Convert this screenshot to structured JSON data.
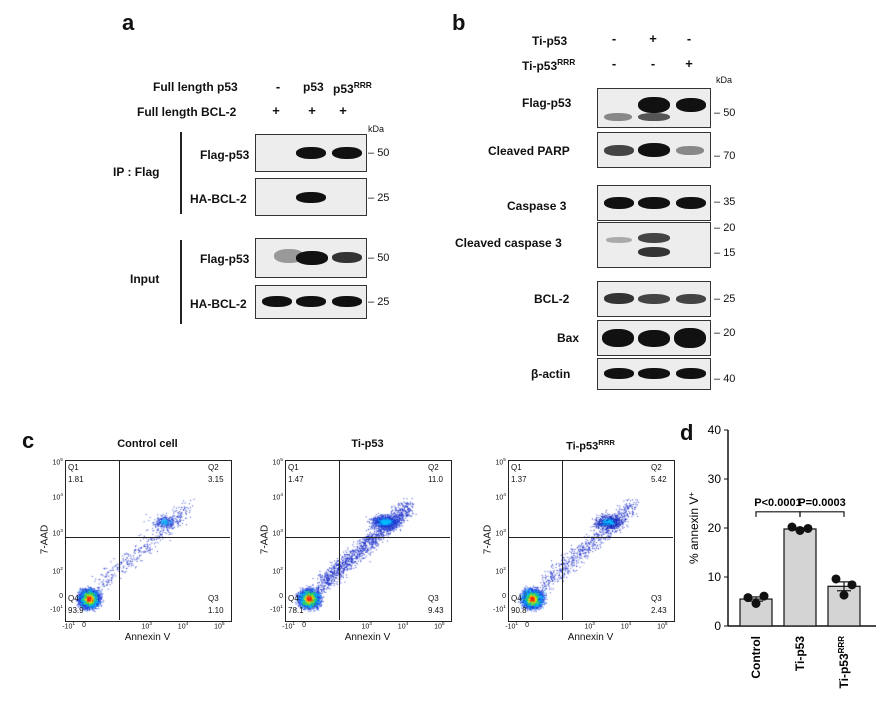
{
  "panels": {
    "a": "a",
    "b": "b",
    "c": "c",
    "d": "d"
  },
  "panel_a": {
    "row_full_p53": "Full length p53",
    "row_full_bcl2": "Full length BCL-2",
    "col_signs_p53": [
      "-",
      "p53",
      "p53"
    ],
    "p53rrr_sup": "RRR",
    "col_signs_bcl2": [
      "+",
      "+",
      "+"
    ],
    "kda": "kDa",
    "group_ip": "IP : Flag",
    "group_input": "Input",
    "blots": [
      {
        "label": "Flag-p53",
        "marker": "50"
      },
      {
        "label": "HA-BCL-2",
        "marker": "25"
      },
      {
        "label": "Flag-p53",
        "marker": "50"
      },
      {
        "label": "HA-BCL-2",
        "marker": "25"
      }
    ]
  },
  "panel_b": {
    "row_ti": "Ti-p53",
    "row_ti_rrr": "Ti-p53",
    "rrr_sup": "RRR",
    "signs_ti": [
      "-",
      "+",
      "-"
    ],
    "signs_ti_rrr": [
      "-",
      "-",
      "+"
    ],
    "kda": "kDa",
    "blots": [
      {
        "label": "Flag-p53",
        "markers": [
          "50"
        ]
      },
      {
        "label": "Cleaved PARP",
        "markers": [
          "70"
        ]
      },
      {
        "label": "Caspase 3",
        "markers": [
          "35"
        ]
      },
      {
        "label": "Cleaved caspase 3",
        "markers": [
          "20",
          "15"
        ]
      },
      {
        "label": "BCL-2",
        "markers": [
          "25"
        ]
      },
      {
        "label": "Bax",
        "markers": [
          "20"
        ]
      },
      {
        "label": "β-actin",
        "markers": [
          "40"
        ]
      }
    ]
  },
  "panel_c": {
    "xlabel": "Annexin V",
    "ylabel": "7-AAD",
    "quadrant_names": [
      "Q1",
      "Q2",
      "Q3",
      "Q4"
    ],
    "x_ticks": [
      "-10",
      "0",
      "10",
      "10",
      "10"
    ],
    "x_tick_exps": [
      "1",
      "",
      "3",
      "4",
      "5"
    ],
    "y_ticks": [
      "10",
      "10",
      "10",
      "10",
      "0",
      "-10"
    ],
    "y_tick_exps": [
      "5",
      "4",
      "3",
      "2",
      "",
      "1"
    ],
    "plots": [
      {
        "title": "Control cell",
        "title_sup": "",
        "q1": "1.81",
        "q2": "3.15",
        "q3": "1.10",
        "q4": "93.9"
      },
      {
        "title": "Ti-p53",
        "title_sup": "",
        "q1": "1.47",
        "q2": "11.0",
        "q3": "9.43",
        "q4": "78.1"
      },
      {
        "title": "Ti-p53",
        "title_sup": "RRR",
        "q1": "1.37",
        "q2": "5.42",
        "q3": "2.43",
        "q4": "90.8"
      }
    ]
  },
  "chart_data": {
    "type": "bar",
    "categories": [
      "Control",
      "Ti-p53",
      "Ti-p53RRR"
    ],
    "category_labels": [
      "Control",
      "Ti-p53",
      "Ti-p53"
    ],
    "category_sups": [
      "",
      "",
      "RRR"
    ],
    "values": [
      5.5,
      19.8,
      8.1
    ],
    "points": [
      [
        5.8,
        4.6,
        6.1
      ],
      [
        20.2,
        19.5,
        19.9
      ],
      [
        9.6,
        6.3,
        8.4
      ]
    ],
    "ylabel": "% annexin V",
    "ylabel_sup": "+",
    "ylim": [
      0,
      40
    ],
    "yticks": [
      0,
      10,
      20,
      30,
      40
    ],
    "yticks_labels": [
      "0",
      "10",
      "20",
      "30",
      "40"
    ],
    "comparisons": [
      {
        "from": 0,
        "to": 1,
        "label": "P<0.0001"
      },
      {
        "from": 1,
        "to": 2,
        "label": "P=0.0003"
      }
    ]
  }
}
